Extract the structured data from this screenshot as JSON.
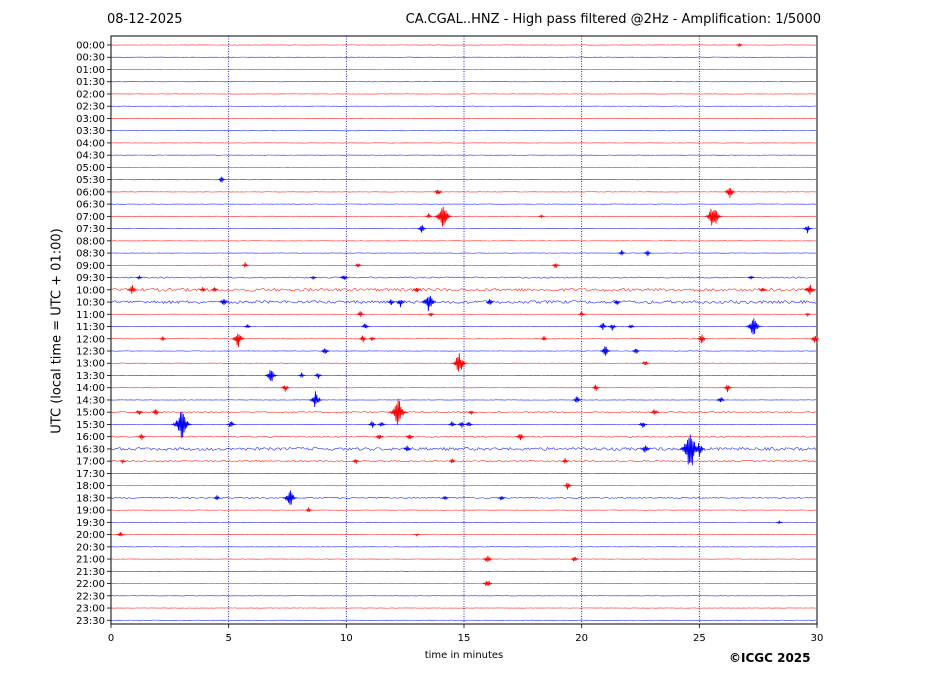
{
  "header": {
    "date": "08-12-2025",
    "title": "CA.CGAL..HNZ - High pass filtered @2Hz - Amplification: 1/5000"
  },
  "footer": {
    "copyright": "©ICGC 2025"
  },
  "chart_data": {
    "type": "line",
    "xlabel": "time in minutes",
    "ylabel": "UTC (local time = UTC + 01:00)",
    "xlim": [
      0,
      30
    ],
    "x_ticks": [
      0,
      5,
      10,
      15,
      20,
      25,
      30
    ],
    "vertical_grid": [
      5,
      10,
      15,
      20,
      25
    ],
    "grid": "dotted vertical lines every 5 minutes",
    "row_colors": [
      "#ff0000",
      "#0000ff"
    ],
    "rows": [
      "00:00",
      "00:30",
      "01:00",
      "01:30",
      "02:00",
      "02:30",
      "03:00",
      "03:30",
      "04:00",
      "04:30",
      "05:00",
      "05:30",
      "06:00",
      "06:30",
      "07:00",
      "07:30",
      "08:00",
      "08:30",
      "09:00",
      "09:30",
      "10:00",
      "10:30",
      "11:00",
      "11:30",
      "12:00",
      "12:30",
      "13:00",
      "13:30",
      "14:00",
      "14:30",
      "15:00",
      "15:30",
      "16:00",
      "16:30",
      "17:00",
      "17:30",
      "18:00",
      "18:30",
      "19:00",
      "19:30",
      "20:00",
      "20:30",
      "21:00",
      "21:30",
      "22:00",
      "22:30",
      "23:00",
      "23:30"
    ],
    "noisy_rows": {
      "20": 3,
      "21": 3,
      "33": 3,
      "34": 1.5,
      "19": 1.3,
      "30": 1.3,
      "32": 1.3,
      "37": 1.2
    },
    "events": [
      {
        "row": 0,
        "minute": 26.7,
        "amp": 2.5
      },
      {
        "row": 11,
        "minute": 4.7,
        "amp": 4
      },
      {
        "row": 12,
        "minute": 13.9,
        "amp": 5
      },
      {
        "row": 12,
        "minute": 26.3,
        "amp": 8
      },
      {
        "row": 14,
        "minute": 13.5,
        "amp": 3
      },
      {
        "row": 14,
        "minute": 14.1,
        "amp": 15
      },
      {
        "row": 14,
        "minute": 18.3,
        "amp": 1.5
      },
      {
        "row": 14,
        "minute": 25.6,
        "amp": 15
      },
      {
        "row": 15,
        "minute": 13.2,
        "amp": 5
      },
      {
        "row": 15,
        "minute": 29.6,
        "amp": 5
      },
      {
        "row": 17,
        "minute": 21.7,
        "amp": 3
      },
      {
        "row": 17,
        "minute": 22.8,
        "amp": 4
      },
      {
        "row": 18,
        "minute": 5.7,
        "amp": 3
      },
      {
        "row": 18,
        "minute": 10.5,
        "amp": 3
      },
      {
        "row": 18,
        "minute": 18.9,
        "amp": 4
      },
      {
        "row": 19,
        "minute": 1.2,
        "amp": 2
      },
      {
        "row": 19,
        "minute": 8.6,
        "amp": 2
      },
      {
        "row": 19,
        "minute": 9.9,
        "amp": 4
      },
      {
        "row": 19,
        "minute": 27.2,
        "amp": 3
      },
      {
        "row": 20,
        "minute": 0.9,
        "amp": 6
      },
      {
        "row": 20,
        "minute": 3.9,
        "amp": 3
      },
      {
        "row": 20,
        "minute": 4.4,
        "amp": 3
      },
      {
        "row": 20,
        "minute": 13.0,
        "amp": 4
      },
      {
        "row": 20,
        "minute": 27.7,
        "amp": 4
      },
      {
        "row": 20,
        "minute": 29.7,
        "amp": 8
      },
      {
        "row": 21,
        "minute": 4.8,
        "amp": 5
      },
      {
        "row": 21,
        "minute": 11.9,
        "amp": 4
      },
      {
        "row": 21,
        "minute": 12.3,
        "amp": 5
      },
      {
        "row": 21,
        "minute": 13.5,
        "amp": 12
      },
      {
        "row": 21,
        "minute": 16.1,
        "amp": 4
      },
      {
        "row": 21,
        "minute": 21.5,
        "amp": 4
      },
      {
        "row": 22,
        "minute": 10.6,
        "amp": 4
      },
      {
        "row": 22,
        "minute": 13.6,
        "amp": 3
      },
      {
        "row": 22,
        "minute": 20.0,
        "amp": 3
      },
      {
        "row": 22,
        "minute": 29.6,
        "amp": 2
      },
      {
        "row": 23,
        "minute": 5.8,
        "amp": 3
      },
      {
        "row": 23,
        "minute": 10.8,
        "amp": 4
      },
      {
        "row": 23,
        "minute": 20.9,
        "amp": 5
      },
      {
        "row": 23,
        "minute": 21.3,
        "amp": 5
      },
      {
        "row": 23,
        "minute": 22.1,
        "amp": 3
      },
      {
        "row": 23,
        "minute": 27.3,
        "amp": 12
      },
      {
        "row": 24,
        "minute": 2.2,
        "amp": 3
      },
      {
        "row": 24,
        "minute": 5.4,
        "amp": 10
      },
      {
        "row": 24,
        "minute": 10.7,
        "amp": 4
      },
      {
        "row": 24,
        "minute": 11.1,
        "amp": 3
      },
      {
        "row": 24,
        "minute": 18.4,
        "amp": 3
      },
      {
        "row": 24,
        "minute": 25.1,
        "amp": 6
      },
      {
        "row": 24,
        "minute": 29.9,
        "amp": 5
      },
      {
        "row": 25,
        "minute": 9.1,
        "amp": 5
      },
      {
        "row": 25,
        "minute": 21.0,
        "amp": 7
      },
      {
        "row": 25,
        "minute": 22.3,
        "amp": 4
      },
      {
        "row": 26,
        "minute": 14.8,
        "amp": 13
      },
      {
        "row": 26,
        "minute": 22.7,
        "amp": 4
      },
      {
        "row": 27,
        "minute": 6.8,
        "amp": 9
      },
      {
        "row": 27,
        "minute": 8.1,
        "amp": 3
      },
      {
        "row": 27,
        "minute": 8.8,
        "amp": 4
      },
      {
        "row": 28,
        "minute": 7.4,
        "amp": 5
      },
      {
        "row": 28,
        "minute": 20.6,
        "amp": 4
      },
      {
        "row": 28,
        "minute": 26.2,
        "amp": 5
      },
      {
        "row": 29,
        "minute": 8.7,
        "amp": 10
      },
      {
        "row": 29,
        "minute": 19.8,
        "amp": 5
      },
      {
        "row": 29,
        "minute": 25.9,
        "amp": 5
      },
      {
        "row": 30,
        "minute": 1.2,
        "amp": 4
      },
      {
        "row": 30,
        "minute": 1.9,
        "amp": 4
      },
      {
        "row": 30,
        "minute": 12.2,
        "amp": 16
      },
      {
        "row": 30,
        "minute": 15.3,
        "amp": 3
      },
      {
        "row": 30,
        "minute": 23.1,
        "amp": 5
      },
      {
        "row": 31,
        "minute": 3.0,
        "amp": 18
      },
      {
        "row": 31,
        "minute": 5.1,
        "amp": 5
      },
      {
        "row": 31,
        "minute": 11.1,
        "amp": 4
      },
      {
        "row": 31,
        "minute": 11.5,
        "amp": 4
      },
      {
        "row": 31,
        "minute": 14.5,
        "amp": 4
      },
      {
        "row": 31,
        "minute": 14.9,
        "amp": 4
      },
      {
        "row": 31,
        "minute": 15.2,
        "amp": 4
      },
      {
        "row": 31,
        "minute": 22.6,
        "amp": 5
      },
      {
        "row": 32,
        "minute": 1.3,
        "amp": 4
      },
      {
        "row": 32,
        "minute": 11.4,
        "amp": 4
      },
      {
        "row": 32,
        "minute": 12.7,
        "amp": 4
      },
      {
        "row": 32,
        "minute": 17.4,
        "amp": 5
      },
      {
        "row": 33,
        "minute": 12.6,
        "amp": 4
      },
      {
        "row": 33,
        "minute": 22.7,
        "amp": 6
      },
      {
        "row": 33,
        "minute": 24.6,
        "amp": 30
      },
      {
        "row": 33,
        "minute": 25.0,
        "amp": 8
      },
      {
        "row": 34,
        "minute": 0.5,
        "amp": 2
      },
      {
        "row": 34,
        "minute": 10.4,
        "amp": 3
      },
      {
        "row": 34,
        "minute": 14.5,
        "amp": 3
      },
      {
        "row": 34,
        "minute": 19.3,
        "amp": 3
      },
      {
        "row": 36,
        "minute": 19.4,
        "amp": 5
      },
      {
        "row": 37,
        "minute": 4.5,
        "amp": 3
      },
      {
        "row": 37,
        "minute": 7.6,
        "amp": 11
      },
      {
        "row": 37,
        "minute": 14.2,
        "amp": 3
      },
      {
        "row": 37,
        "minute": 16.6,
        "amp": 4
      },
      {
        "row": 38,
        "minute": 8.4,
        "amp": 3
      },
      {
        "row": 39,
        "minute": 28.4,
        "amp": 1.5
      },
      {
        "row": 40,
        "minute": 0.4,
        "amp": 3
      },
      {
        "row": 40,
        "minute": 13.0,
        "amp": 1.5
      },
      {
        "row": 42,
        "minute": 16.0,
        "amp": 6
      },
      {
        "row": 42,
        "minute": 19.7,
        "amp": 4
      },
      {
        "row": 44,
        "minute": 16.0,
        "amp": 6
      }
    ]
  }
}
